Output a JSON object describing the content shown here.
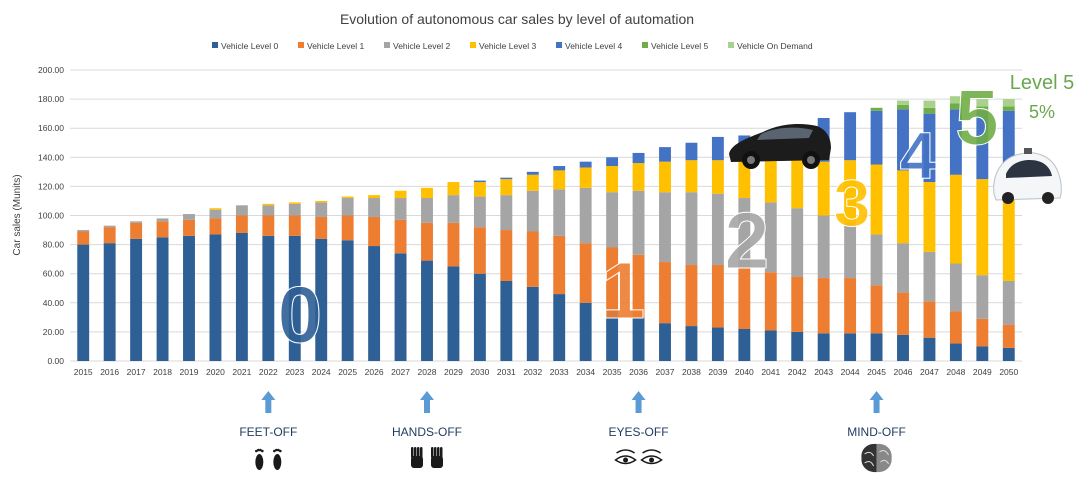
{
  "chart_data": {
    "type": "bar",
    "stacked": true,
    "title": "Evolution of autonomous car sales by level of automation",
    "ylabel": "Car sales (Munits)",
    "xlabel": "",
    "ylim": [
      0,
      200
    ],
    "y_ticks": [
      "0.00",
      "20.00",
      "40.00",
      "60.00",
      "80.00",
      "100.00",
      "120.00",
      "140.00",
      "160.00",
      "180.00",
      "200.00"
    ],
    "grid": true,
    "legend_position": "top",
    "categories": [
      "2015",
      "2016",
      "2017",
      "2018",
      "2019",
      "2020",
      "2021",
      "2022",
      "2023",
      "2024",
      "2025",
      "2026",
      "2027",
      "2028",
      "2029",
      "2030",
      "2031",
      "2032",
      "2033",
      "2034",
      "2035",
      "2036",
      "2037",
      "2038",
      "2039",
      "2040",
      "2041",
      "2042",
      "2043",
      "2044",
      "2045",
      "2046",
      "2047",
      "2048",
      "2049",
      "2050"
    ],
    "series": [
      {
        "name": "Vehicle Level 0",
        "color": "#2e5f95",
        "values": [
          80,
          81,
          84,
          85,
          86,
          87,
          88,
          86,
          86,
          84,
          83,
          79,
          74,
          69,
          65,
          60,
          55,
          51,
          46,
          40,
          35,
          30,
          26,
          24,
          23,
          22,
          21,
          20,
          19,
          19,
          19,
          18,
          16,
          12,
          10,
          9
        ]
      },
      {
        "name": "Vehicle Level 1",
        "color": "#ed7d31",
        "values": [
          9,
          11,
          11,
          11,
          11,
          11,
          12,
          14,
          14,
          15,
          17,
          20,
          23,
          26,
          30,
          32,
          35,
          38,
          40,
          41,
          43,
          43,
          42,
          42,
          43,
          42,
          40,
          38,
          38,
          38,
          33,
          29,
          25,
          22,
          19,
          16
        ]
      },
      {
        "name": "Vehicle Level 2",
        "color": "#a5a5a5",
        "values": [
          1,
          1,
          1,
          2,
          4,
          6,
          7,
          7,
          8,
          10,
          12,
          13,
          15,
          17,
          19,
          21,
          24,
          28,
          32,
          38,
          38,
          44,
          48,
          50,
          49,
          48,
          48,
          47,
          43,
          38,
          35,
          34,
          34,
          33,
          30,
          30
        ]
      },
      {
        "name": "Vehicle Level 3",
        "color": "#ffc000",
        "values": [
          0,
          0,
          0,
          0,
          0,
          1,
          0,
          1,
          1,
          1,
          1,
          2,
          5,
          7,
          9,
          10,
          11,
          11,
          13,
          14,
          18,
          19,
          21,
          22,
          23,
          26,
          29,
          33,
          37,
          43,
          48,
          50,
          48,
          61,
          66,
          62
        ]
      },
      {
        "name": "Vehicle Level 4",
        "color": "#4472c4",
        "values": [
          0,
          0,
          0,
          0,
          0,
          0,
          0,
          0,
          0,
          0,
          0,
          0,
          0,
          0,
          0,
          1,
          1,
          2,
          3,
          4,
          6,
          7,
          10,
          12,
          16,
          17,
          20,
          20,
          30,
          33,
          37,
          42,
          47,
          45,
          47,
          55
        ]
      },
      {
        "name": "Vehicle Level 5",
        "color": "#70ad47",
        "values": [
          0,
          0,
          0,
          0,
          0,
          0,
          0,
          0,
          0,
          0,
          0,
          0,
          0,
          0,
          0,
          0,
          0,
          0,
          0,
          0,
          0,
          0,
          0,
          0,
          0,
          0,
          0,
          0,
          0,
          0,
          2,
          3,
          4,
          4,
          3,
          3
        ]
      },
      {
        "name": "Vehicle On Demand",
        "color": "#a9d18e",
        "values": [
          0,
          0,
          0,
          0,
          0,
          0,
          0,
          0,
          0,
          0,
          0,
          0,
          0,
          0,
          0,
          0,
          0,
          0,
          0,
          0,
          0,
          0,
          0,
          0,
          0,
          0,
          0,
          0,
          0,
          0,
          0,
          3,
          5,
          5,
          5,
          5
        ]
      }
    ],
    "overlay_numbers": [
      {
        "text": "0",
        "color": "#2e5f95"
      },
      {
        "text": "1",
        "color": "#ed7d31"
      },
      {
        "text": "2",
        "color": "#a5a5a5"
      },
      {
        "text": "3",
        "color": "#ffc000"
      },
      {
        "text": "4",
        "color": "#4472c4"
      },
      {
        "text": "5",
        "color": "#70ad47"
      }
    ],
    "corner_label": {
      "title": "Level 5",
      "value": "5%"
    },
    "milestones": [
      {
        "label": "FEET-OFF",
        "year": "2022",
        "icon": "feet-icon"
      },
      {
        "label": "HANDS-OFF",
        "year": "2028",
        "icon": "hands-icon"
      },
      {
        "label": "EYES-OFF",
        "year": "2036",
        "icon": "eyes-icon"
      },
      {
        "label": "MIND-OFF",
        "year": "2045",
        "icon": "brain-icon"
      }
    ]
  }
}
